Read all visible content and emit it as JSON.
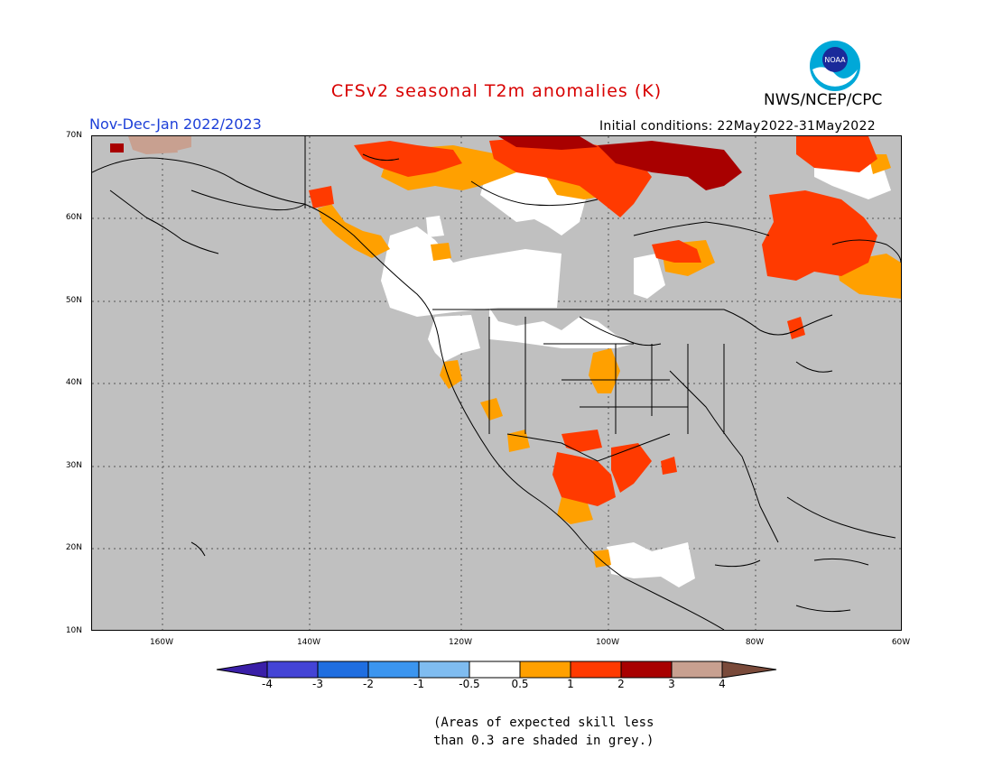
{
  "title": "CFSv2 seasonal T2m anomalies (K)",
  "org": "NWS/NCEP/CPC",
  "period": "Nov-Dec-Jan 2022/2023",
  "initial_conditions": "Initial conditions: 22May2022-31May2022",
  "logo_text": "NOAA",
  "lat_labels": [
    "70N",
    "60N",
    "50N",
    "40N",
    "30N",
    "20N",
    "10N"
  ],
  "lon_labels": [
    "160W",
    "140W",
    "120W",
    "100W",
    "80W",
    "60W"
  ],
  "colorbar": {
    "labels": [
      "-4",
      "-3",
      "-2",
      "-1",
      "-0.5",
      "0.5",
      "1",
      "2",
      "3",
      "4"
    ],
    "colors": [
      "#3a1fa8",
      "#4444d6",
      "#1f6ee0",
      "#3b95ef",
      "#7fbcf0",
      "#ffffff",
      "#ffa000",
      "#ff3a00",
      "#a80000",
      "#c8a090",
      "#7a4a3a"
    ]
  },
  "note_line1": "(Areas of expected skill less",
  "note_line2": "than 0.3 are shaded in grey.)",
  "colors": {
    "grey": "#c0c0c0",
    "orange": "#ffa000",
    "red": "#ff3a00",
    "darkred": "#a80000",
    "tan": "#c8a090",
    "white": "#ffffff"
  }
}
